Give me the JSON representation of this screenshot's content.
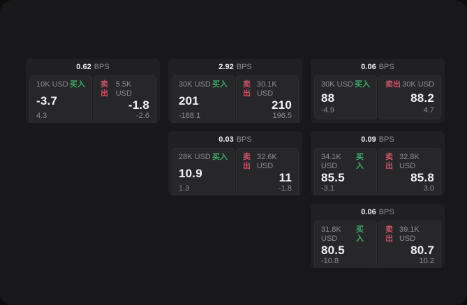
{
  "theme": {
    "backdrop": "#0d0d0d",
    "panel": "#18181a",
    "card": "#202023",
    "subpanel": "#27272a",
    "text_primary": "#f2f2f3",
    "text_secondary": "#8e8e92",
    "buy": "#3cab67",
    "sell": "#ca5365"
  },
  "labels": {
    "bps": "BPS",
    "buy": "买入",
    "sell": "卖出"
  },
  "cards": [
    {
      "row": 1,
      "col": 1,
      "bps": "0.62",
      "buy": {
        "notional": "10K USD",
        "price": "-3.7",
        "delta": "4.3"
      },
      "sell": {
        "notional": "5.5K USD",
        "price": "-1.8",
        "delta": "-2.6"
      }
    },
    {
      "row": 1,
      "col": 2,
      "bps": "2.92",
      "buy": {
        "notional": "30K USD",
        "price": "201",
        "delta": "-188.1"
      },
      "sell": {
        "notional": "30.1K USD",
        "price": "210",
        "delta": "196.5"
      }
    },
    {
      "row": 1,
      "col": 3,
      "bps": "0.06",
      "buy": {
        "notional": "30K USD",
        "price": "88",
        "delta": "-4.9"
      },
      "sell": {
        "notional": "30K USD",
        "price": "88.2",
        "delta": "4.7"
      }
    },
    {
      "row": 2,
      "col": 2,
      "bps": "0.03",
      "buy": {
        "notional": "28K USD",
        "price": "10.9",
        "delta": "1.3"
      },
      "sell": {
        "notional": "32.6K USD",
        "price": "11",
        "delta": "-1.8"
      }
    },
    {
      "row": 2,
      "col": 3,
      "bps": "0.09",
      "buy": {
        "notional": "34.1K USD",
        "price": "85.5",
        "delta": "-3.1"
      },
      "sell": {
        "notional": "32.8K USD",
        "price": "85.8",
        "delta": "3.0"
      }
    },
    {
      "row": 3,
      "col": 3,
      "bps": "0.06",
      "buy": {
        "notional": "31.8K USD",
        "price": "80.5",
        "delta": "-10.8"
      },
      "sell": {
        "notional": "39.1K USD",
        "price": "80.7",
        "delta": "10.2"
      }
    }
  ]
}
